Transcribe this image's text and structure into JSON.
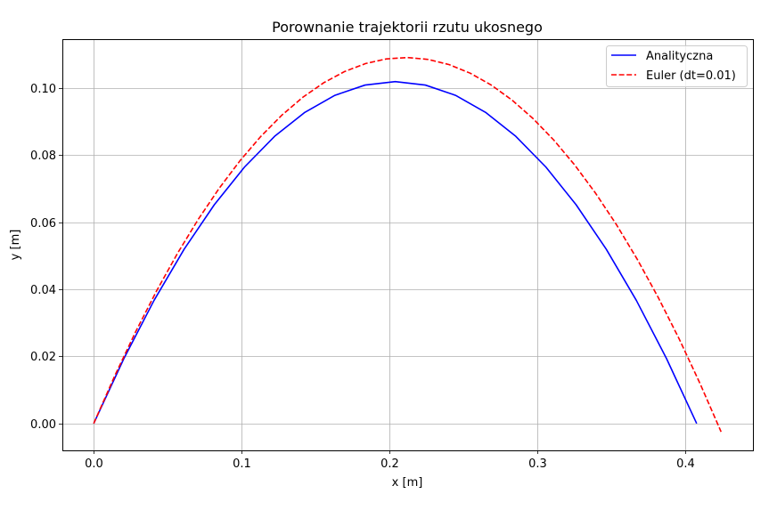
{
  "chart_data": {
    "type": "line",
    "title": "Porownanie trajektorii rzutu ukosnego",
    "xlabel": "x [m]",
    "ylabel": "y [m]",
    "xlim": [
      -0.0212,
      0.4458
    ],
    "ylim": [
      -0.008,
      0.1146
    ],
    "xticks": [
      0.0,
      0.1,
      0.2,
      0.3,
      0.4
    ],
    "xtick_labels": [
      "0.0",
      "0.1",
      "0.2",
      "0.3",
      "0.4"
    ],
    "yticks": [
      0.0,
      0.02,
      0.04,
      0.06,
      0.08,
      0.1
    ],
    "ytick_labels": [
      "0.00",
      "0.02",
      "0.04",
      "0.06",
      "0.08",
      "0.10"
    ],
    "grid": true,
    "legend_position": "top-right",
    "series": [
      {
        "name": "Analityczna",
        "color": "#0000ff",
        "style": "solid",
        "x": [
          0,
          0.020388,
          0.040775,
          0.061163,
          0.08155,
          0.101938,
          0.122325,
          0.142713,
          0.1631,
          0.183488,
          0.203875,
          0.224263,
          0.24465,
          0.265038,
          0.285425,
          0.305813,
          0.3262,
          0.346588,
          0.366975,
          0.387363,
          0.40775
        ],
        "y": [
          0,
          0.019368,
          0.036698,
          0.051988,
          0.06524,
          0.076453,
          0.085628,
          0.092763,
          0.09786,
          0.100918,
          0.101938,
          0.100918,
          0.09786,
          0.092763,
          0.085628,
          0.076453,
          0.06524,
          0.051988,
          0.036698,
          0.019368,
          0
        ]
      },
      {
        "name": "Euler (dt=0.01)",
        "color": "#ff0000",
        "style": "dashed",
        "x": [
          0,
          0.01414,
          0.02828,
          0.04243,
          0.05657,
          0.07071,
          0.08485,
          0.09899,
          0.11314,
          0.12728,
          0.14142,
          0.15556,
          0.16971,
          0.18385,
          0.19799,
          0.21213,
          0.22627,
          0.24042,
          0.25456,
          0.2687,
          0.28284,
          0.29698,
          0.31113,
          0.32527,
          0.33941,
          0.35355,
          0.3677,
          0.38184,
          0.39598,
          0.41012,
          0.42426
        ],
        "y": [
          0,
          0.014142,
          0.027303,
          0.039483,
          0.050683,
          0.060901,
          0.070138,
          0.078394,
          0.085669,
          0.091963,
          0.097276,
          0.101608,
          0.10496,
          0.10733,
          0.108719,
          0.109127,
          0.108554,
          0.107,
          0.104465,
          0.10095,
          0.096453,
          0.090975,
          0.084516,
          0.077076,
          0.068655,
          0.059253,
          0.048871,
          0.037507,
          0.025162,
          0.011836,
          -0.002471
        ]
      }
    ]
  }
}
